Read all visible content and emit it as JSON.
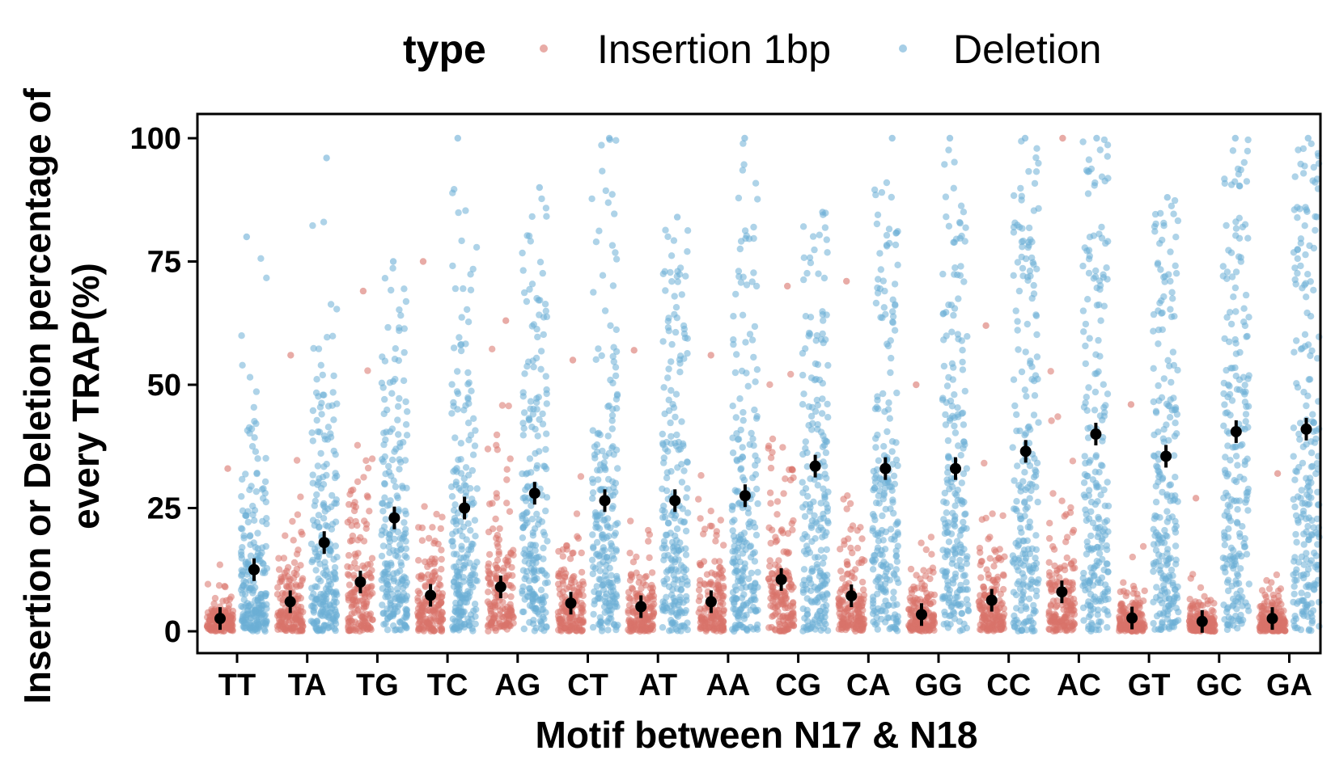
{
  "chart_data": {
    "type": "scatter",
    "xlabel": "Motif between N17 & N18",
    "ylabel_lines": [
      "Insertion or Deletion percentage of",
      "every TRAP(%)"
    ],
    "ylim": [
      0,
      100
    ],
    "yticks": [
      0,
      25,
      50,
      75,
      100
    ],
    "categories": [
      "TT",
      "TA",
      "TG",
      "TC",
      "AG",
      "CT",
      "AT",
      "AA",
      "CG",
      "CA",
      "GG",
      "CC",
      "AC",
      "GT",
      "GC",
      "GA"
    ],
    "legend": {
      "title": "type",
      "position": "top",
      "entries": [
        "Insertion 1bp",
        "Deletion"
      ]
    },
    "colors": {
      "Insertion 1bp": "#D9736A",
      "Deletion": "#6BAED6",
      "mean": "#000000"
    },
    "series": [
      {
        "name": "Insertion 1bp",
        "mean": [
          2.6,
          6.0,
          10.0,
          7.3,
          9.0,
          5.7,
          5.0,
          6.0,
          10.5,
          7.2,
          3.4,
          6.3,
          8.0,
          2.7,
          2.0,
          2.6
        ],
        "max": [
          33,
          56,
          69,
          75,
          63,
          55,
          57,
          56,
          70,
          71,
          50,
          62,
          100,
          46,
          27,
          32
        ]
      },
      {
        "name": "Deletion",
        "mean": [
          12.5,
          18.0,
          23.0,
          25.0,
          28.0,
          26.5,
          26.5,
          27.5,
          33.5,
          33.0,
          33.0,
          36.5,
          40.0,
          35.5,
          40.5,
          41.0
        ],
        "max": [
          80,
          96,
          75,
          100,
          90,
          100,
          84,
          100,
          85,
          100,
          100,
          100,
          100,
          88,
          100,
          100
        ]
      }
    ],
    "grid": false
  }
}
